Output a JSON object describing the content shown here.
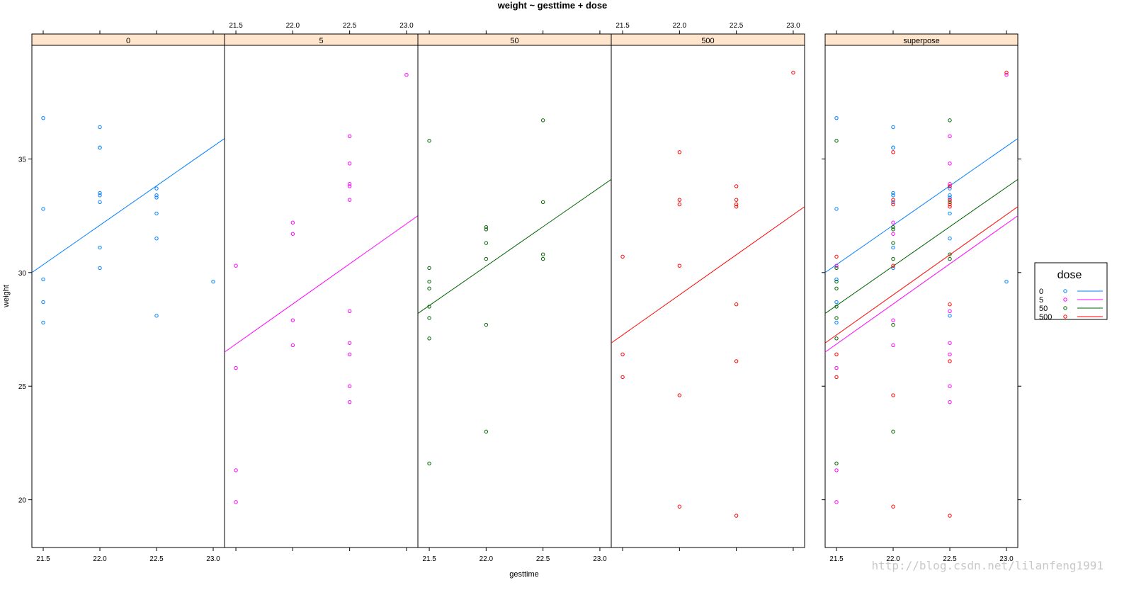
{
  "chart_data": {
    "type": "scatter",
    "title": "weight ~ gesttime + dose",
    "xlabel": "gesttime",
    "ylabel": "weight",
    "xlim": [
      21.4,
      23.1
    ],
    "ylim": [
      17.9,
      40.0
    ],
    "x_ticks": [
      21.5,
      22.0,
      22.5,
      23.0
    ],
    "y_ticks": [
      20,
      25,
      30,
      35
    ],
    "grid": false,
    "colors": {
      "0": "#0080ff",
      "5": "#ff00ff",
      "50": "#006400",
      "500": "#ff0000"
    },
    "legend": {
      "title": "dose",
      "placement": "right",
      "entries": [
        "0",
        "5",
        "50",
        "500"
      ]
    },
    "series": [
      {
        "name": "0",
        "points": [
          [
            21.5,
            36.8
          ],
          [
            21.5,
            32.8
          ],
          [
            21.5,
            29.7
          ],
          [
            21.5,
            28.7
          ],
          [
            21.5,
            27.8
          ],
          [
            22.0,
            36.4
          ],
          [
            22.0,
            35.5
          ],
          [
            22.0,
            35.5
          ],
          [
            22.0,
            33.5
          ],
          [
            22.0,
            33.4
          ],
          [
            22.0,
            33.1
          ],
          [
            22.0,
            31.1
          ],
          [
            22.0,
            30.2
          ],
          [
            22.5,
            33.7
          ],
          [
            22.5,
            33.4
          ],
          [
            22.5,
            33.3
          ],
          [
            22.5,
            32.6
          ],
          [
            22.5,
            31.5
          ],
          [
            22.5,
            28.1
          ],
          [
            23.0,
            29.6
          ]
        ],
        "fit": [
          [
            21.4,
            30.0
          ],
          [
            23.1,
            35.9
          ]
        ]
      },
      {
        "name": "5",
        "points": [
          [
            21.5,
            30.3
          ],
          [
            21.5,
            25.8
          ],
          [
            21.5,
            21.3
          ],
          [
            21.5,
            19.9
          ],
          [
            22.0,
            32.2
          ],
          [
            22.0,
            31.7
          ],
          [
            22.0,
            27.9
          ],
          [
            22.0,
            26.8
          ],
          [
            22.5,
            36.0
          ],
          [
            22.5,
            34.8
          ],
          [
            22.5,
            33.9
          ],
          [
            22.5,
            33.8
          ],
          [
            22.5,
            33.2
          ],
          [
            22.5,
            28.3
          ],
          [
            22.5,
            26.9
          ],
          [
            22.5,
            26.4
          ],
          [
            22.5,
            25.0
          ],
          [
            22.5,
            24.3
          ],
          [
            23.0,
            38.7
          ]
        ],
        "fit": [
          [
            21.4,
            26.5
          ],
          [
            23.1,
            32.5
          ]
        ]
      },
      {
        "name": "50",
        "points": [
          [
            21.5,
            35.8
          ],
          [
            21.5,
            30.2
          ],
          [
            21.5,
            29.6
          ],
          [
            21.5,
            29.3
          ],
          [
            21.5,
            28.5
          ],
          [
            21.5,
            28.0
          ],
          [
            21.5,
            27.1
          ],
          [
            21.5,
            21.6
          ],
          [
            22.0,
            32.0
          ],
          [
            22.0,
            31.9
          ],
          [
            22.0,
            31.3
          ],
          [
            22.0,
            30.6
          ],
          [
            22.0,
            27.7
          ],
          [
            22.0,
            23.0
          ],
          [
            22.5,
            36.7
          ],
          [
            22.5,
            33.1
          ],
          [
            22.5,
            30.8
          ],
          [
            22.5,
            30.6
          ]
        ],
        "fit": [
          [
            21.4,
            28.2
          ],
          [
            23.1,
            34.1
          ]
        ]
      },
      {
        "name": "500",
        "points": [
          [
            21.5,
            30.7
          ],
          [
            21.5,
            26.4
          ],
          [
            21.5,
            25.4
          ],
          [
            22.0,
            35.3
          ],
          [
            22.0,
            33.2
          ],
          [
            22.0,
            33.0
          ],
          [
            22.0,
            30.3
          ],
          [
            22.0,
            24.6
          ],
          [
            22.0,
            19.7
          ],
          [
            22.5,
            33.8
          ],
          [
            22.5,
            33.2
          ],
          [
            22.5,
            33.0
          ],
          [
            22.5,
            32.9
          ],
          [
            22.5,
            28.6
          ],
          [
            22.5,
            26.1
          ],
          [
            22.5,
            19.3
          ],
          [
            23.0,
            38.8
          ]
        ],
        "fit": [
          [
            21.4,
            26.9
          ],
          [
            23.1,
            32.9
          ]
        ]
      }
    ],
    "panels": [
      {
        "strip": "0",
        "series": [
          "0"
        ]
      },
      {
        "strip": "5",
        "series": [
          "5"
        ]
      },
      {
        "strip": "50",
        "series": [
          "50"
        ]
      },
      {
        "strip": "500",
        "series": [
          "500"
        ]
      },
      {
        "strip": "superpose",
        "series": [
          "0",
          "5",
          "50",
          "500"
        ]
      }
    ]
  },
  "watermark": "http://blog.csdn.net/lilanfeng1991"
}
